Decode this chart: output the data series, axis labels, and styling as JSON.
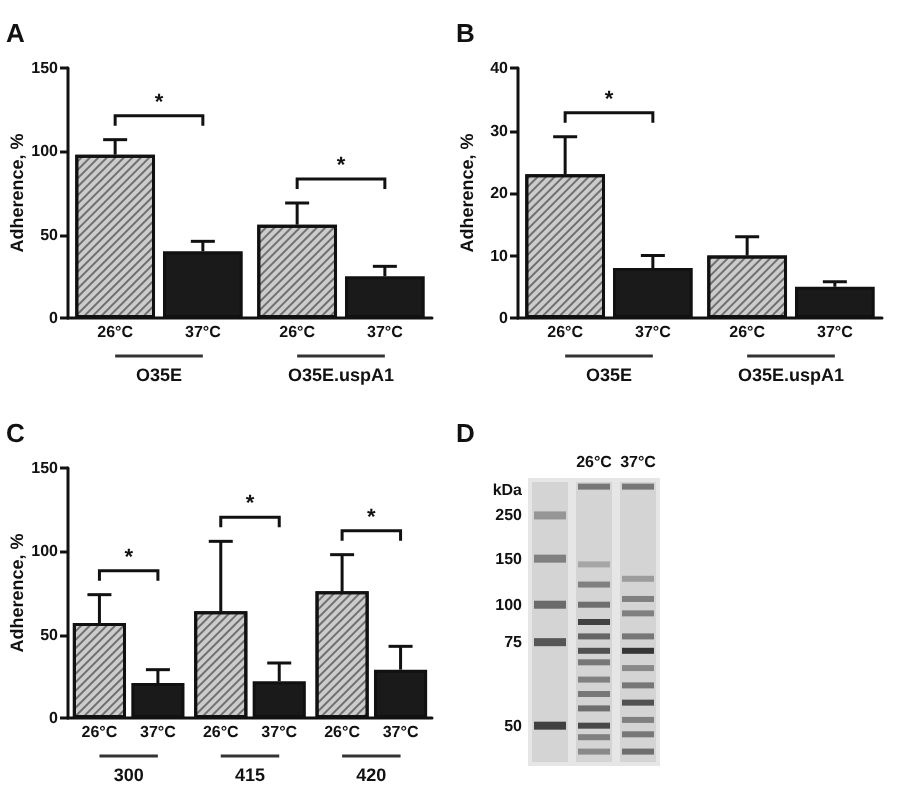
{
  "chart_data": [
    {
      "type": "bar",
      "title": "A",
      "ylabel": "Adherence, %",
      "categories": [
        "O35E",
        "O35E.uspA1"
      ],
      "series": [
        {
          "name": "26°C",
          "color": "#cccccc",
          "values": [
            98,
            56
          ],
          "errors": [
            9,
            13
          ]
        },
        {
          "name": "37°C",
          "color": "#1a1a1a",
          "values": [
            40,
            25
          ],
          "errors": [
            6,
            6
          ]
        }
      ],
      "ylim": [
        0,
        150
      ],
      "yticks": [
        0,
        50,
        100,
        150
      ],
      "annotations": [
        "*",
        "*"
      ]
    },
    {
      "type": "bar",
      "title": "B",
      "ylabel": "Adherence, %",
      "categories": [
        "O35E",
        "O35E.uspA1"
      ],
      "series": [
        {
          "name": "26°C",
          "color": "#cccccc",
          "values": [
            23,
            10
          ],
          "errors": [
            6,
            3
          ]
        },
        {
          "name": "37°C",
          "color": "#1a1a1a",
          "values": [
            8,
            5
          ],
          "errors": [
            2,
            0.8
          ]
        }
      ],
      "ylim": [
        0,
        40
      ],
      "yticks": [
        0,
        10,
        20,
        30,
        40
      ],
      "annotations": [
        "*"
      ]
    },
    {
      "type": "bar",
      "title": "C",
      "ylabel": "Adherence, %",
      "categories": [
        "300",
        "415",
        "420"
      ],
      "series": [
        {
          "name": "26°C",
          "color": "#cccccc",
          "values": [
            57,
            64,
            76
          ],
          "errors": [
            17,
            42,
            22
          ]
        },
        {
          "name": "37°C",
          "color": "#1a1a1a",
          "values": [
            21,
            22,
            29
          ],
          "errors": [
            8,
            11,
            14
          ]
        }
      ],
      "ylim": [
        0,
        150
      ],
      "yticks": [
        0,
        50,
        100,
        150
      ],
      "annotations": [
        "*",
        "*",
        "*"
      ]
    },
    {
      "type": "other",
      "title": "D",
      "ylabel": "kDa",
      "categories": [
        null,
        "26°C",
        "37°C"
      ],
      "annotations": [
        "250",
        "150",
        "100",
        "75",
        "50"
      ]
    }
  ]
}
